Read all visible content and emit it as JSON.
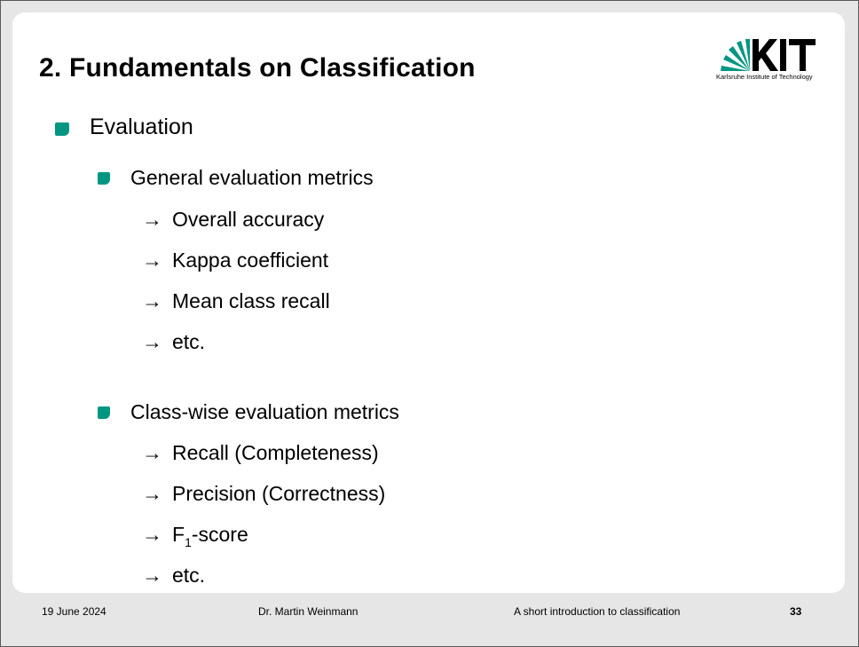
{
  "slide": {
    "title": "2. Fundamentals on Classification",
    "logo": {
      "text": "Karlsruhe Institute of Technology",
      "icon": "kit-logo"
    },
    "level1": {
      "label": "Evaluation"
    },
    "sections": [
      {
        "label": "General evaluation metrics",
        "items": [
          "Overall accuracy",
          "Kappa coefficient",
          "Mean class recall",
          "etc."
        ]
      },
      {
        "label": "Class-wise evaluation metrics",
        "items": [
          "Recall (Completeness)",
          "Precision (Correctness)",
          "F1-score",
          "etc."
        ]
      }
    ],
    "f_score": {
      "base": "F",
      "subscript": "1",
      "suffix": "-score"
    },
    "arrow_glyph": "→"
  },
  "footer": {
    "date": "19 June 2024",
    "author": "Dr. Martin Weinmann",
    "talk_title": "A short introduction to classification",
    "page_number": "33"
  },
  "colors": {
    "accent": "#009682",
    "slide_bg": "#ffffff",
    "frame_bg": "#e6e6e6"
  }
}
